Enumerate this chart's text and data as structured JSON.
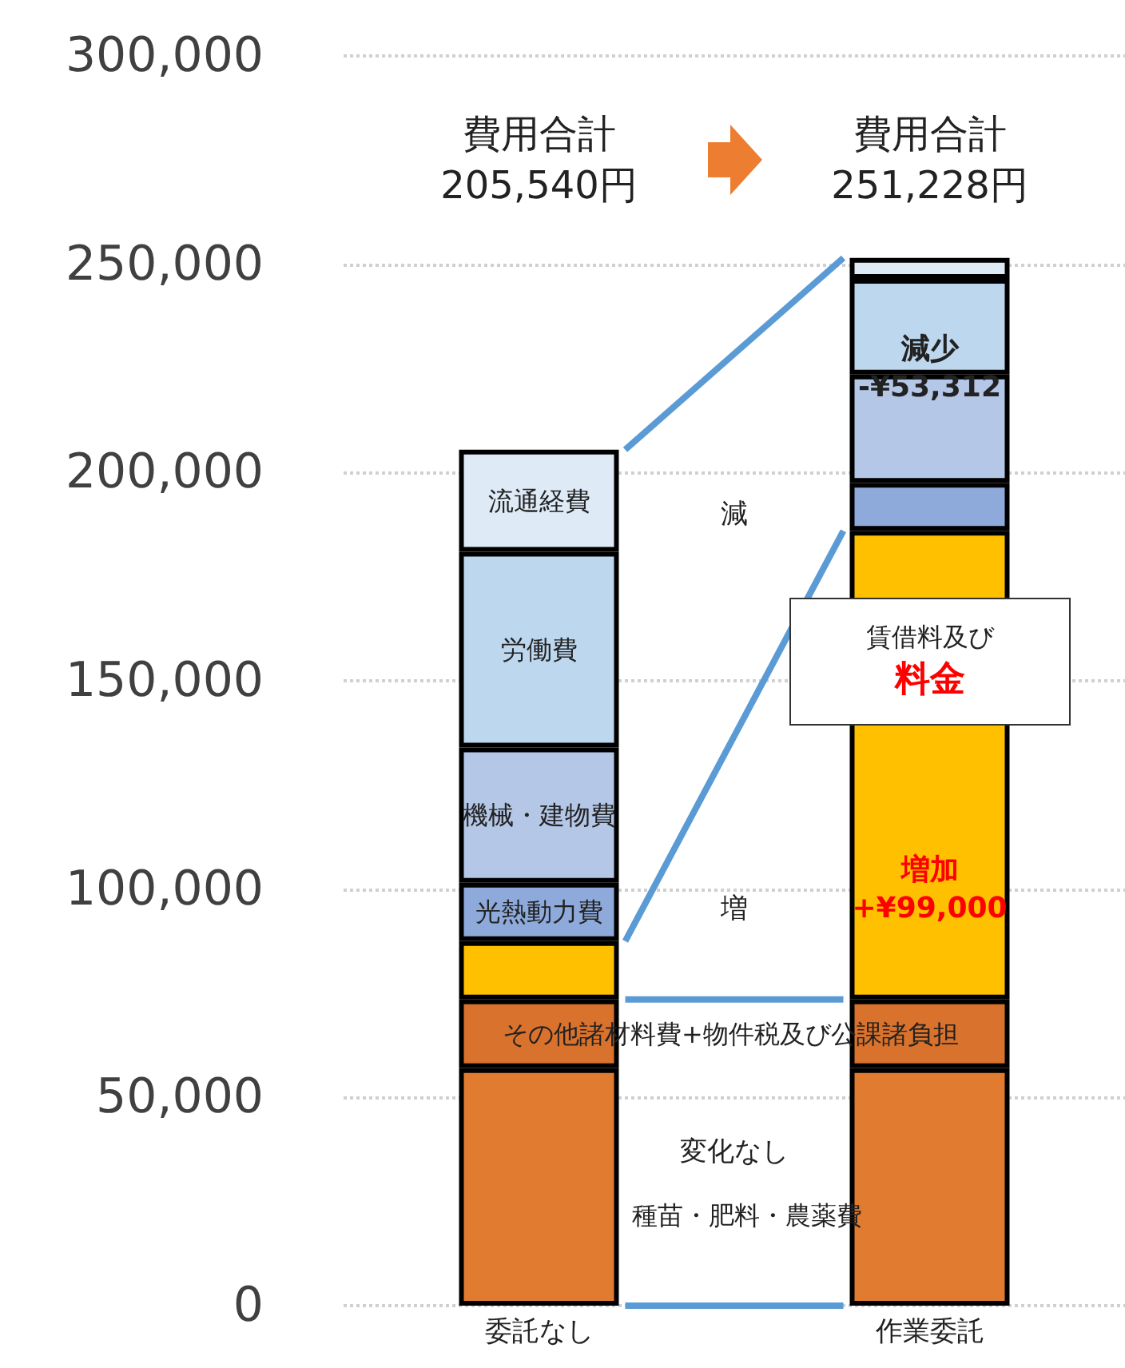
{
  "chart_data": {
    "type": "bar",
    "stacked": true,
    "categories": [
      "委託なし",
      "作業委託"
    ],
    "series": [
      {
        "name": "種苗・肥料・農薬費",
        "color": "#e07b30",
        "values": [
          57000,
          57000
        ]
      },
      {
        "name": "その他諸材料費+物件税及び公課諸負担",
        "color": "#d9722c",
        "values": [
          16500,
          16500
        ]
      },
      {
        "name": "賃借料及び料金",
        "color": "#ffc000",
        "values": [
          14000,
          112500
        ]
      },
      {
        "name": "光熱動力費",
        "color": "#8eaadb",
        "values": [
          14000,
          11500
        ]
      },
      {
        "name": "機械・建物費",
        "color": "#b4c7e7",
        "values": [
          32500,
          26000
        ]
      },
      {
        "name": "労働費",
        "color": "#bdd7ee",
        "values": [
          47000,
          23000
        ]
      },
      {
        "name": "流通経費",
        "color": "#deebf7",
        "values": [
          24500,
          5000
        ]
      }
    ],
    "ylim": [
      0,
      300000
    ],
    "yticks": [
      0,
      {
        "value": 50000,
        "label": "50,000"
      },
      {
        "value": 100000,
        "label": "100,000"
      },
      {
        "value": 150000,
        "label": "150,000"
      },
      {
        "value": 200000,
        "label": "200,000"
      },
      {
        "value": 250000,
        "label": "250,000"
      },
      {
        "value": 300000,
        "label": "300,000"
      }
    ],
    "grid": "y",
    "annotations": [
      "費用合計\n205,540円",
      "費用合計\n251,228円",
      "変化なし",
      "増",
      "減",
      "減少\n-¥53,312",
      "増加\n+¥99,000"
    ]
  }
}
